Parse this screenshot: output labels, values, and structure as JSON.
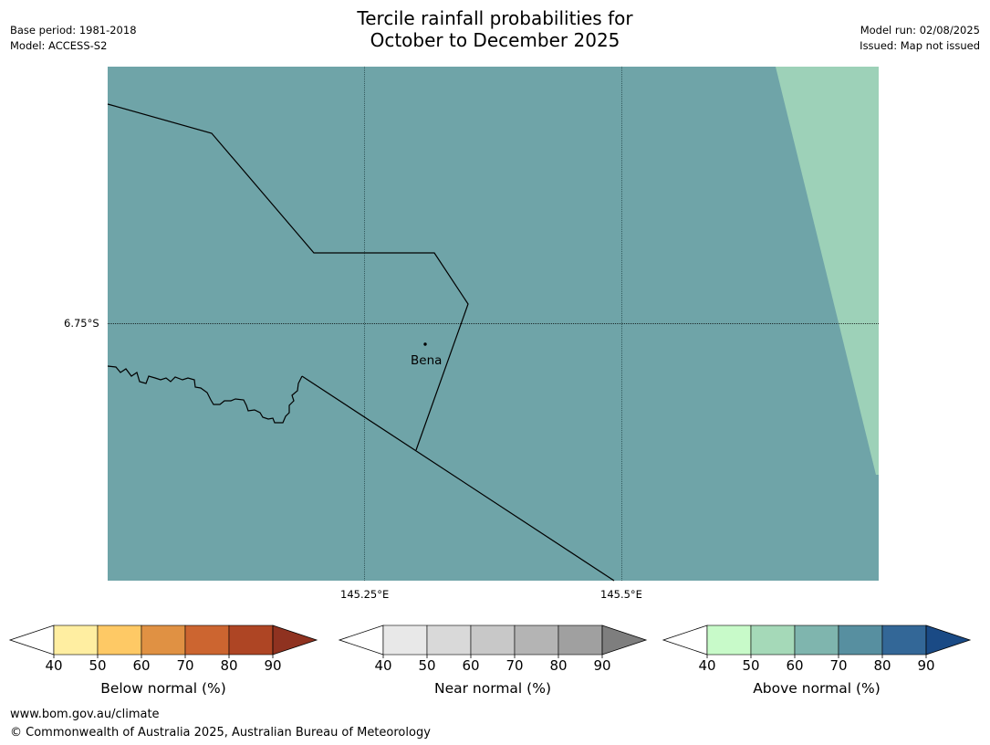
{
  "title_line1": "Tercile rainfall probabilities for",
  "title_line2": "October to December 2025",
  "meta": {
    "base_period": "Base period: 1981-2018",
    "model": "Model: ACCESS-S2",
    "model_run": "Model run: 02/08/2025",
    "issued": "Issued: Map not issued"
  },
  "map": {
    "lat_label": "6.75°S",
    "lon_labels": [
      "145.25°E",
      "145.5°E"
    ],
    "place_label": "Bena",
    "colors": {
      "main_fill": "#6fa4a8",
      "east_fill": "#9dd1b8",
      "border": "#000000"
    }
  },
  "colorbars": [
    {
      "label": "Below normal (%)",
      "ticks": [
        "40",
        "50",
        "60",
        "70",
        "80",
        "90"
      ],
      "colors": [
        "#ffeea1",
        "#fec965",
        "#e09143",
        "#cc6530",
        "#ae4524"
      ],
      "extend_color": "#8f3220"
    },
    {
      "label": "Near normal (%)",
      "ticks": [
        "40",
        "50",
        "60",
        "70",
        "80",
        "90"
      ],
      "colors": [
        "#e8e8e8",
        "#d9d9d9",
        "#c8c8c8",
        "#b4b4b4",
        "#a0a0a0"
      ],
      "extend_color": "#7e7e7e"
    },
    {
      "label": "Above normal (%)",
      "ticks": [
        "40",
        "50",
        "60",
        "70",
        "80",
        "90"
      ],
      "colors": [
        "#c8fac9",
        "#a5d9b8",
        "#7fb5ae",
        "#578fa0",
        "#336797"
      ],
      "extend_color": "#1a4a85"
    }
  ],
  "footer": {
    "url": "www.bom.gov.au/climate",
    "copyright": "© Commonwealth of Australia 2025, Australian Bureau of Meteorology"
  }
}
